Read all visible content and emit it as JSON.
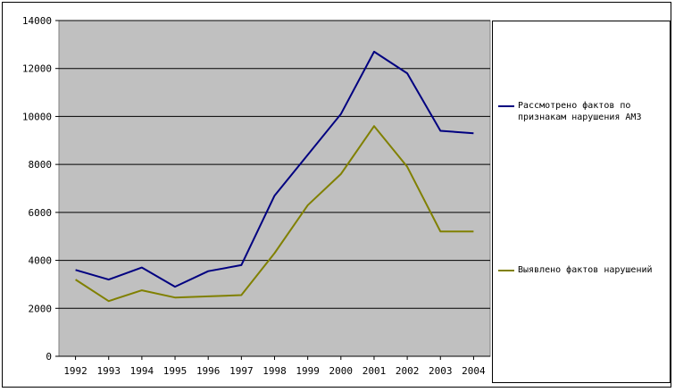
{
  "chart_data": {
    "type": "line",
    "categories": [
      "1992",
      "1993",
      "1994",
      "1995",
      "1996",
      "1997",
      "1998",
      "1999",
      "2000",
      "2001",
      "2002",
      "2003",
      "2004"
    ],
    "series": [
      {
        "name": "Рассмотрено фактов по признакам нарушения АМЗ",
        "color": "#000080",
        "values": [
          3600,
          3200,
          3700,
          2900,
          3550,
          3800,
          6700,
          8400,
          10100,
          12700,
          11800,
          9400,
          9300
        ]
      },
      {
        "name": "Выявлено фактов нарушений",
        "color": "#808000",
        "values": [
          3200,
          2300,
          2750,
          2450,
          2500,
          2550,
          4300,
          6300,
          7600,
          9600,
          7900,
          5200,
          5200
        ]
      }
    ],
    "yticks": [
      "0",
      "2000",
      "4000",
      "6000",
      "8000",
      "10000",
      "12000",
      "14000"
    ],
    "ylim": [
      0,
      14000
    ],
    "grid": true,
    "plot_background": "#c0c0c0",
    "legend_position": "right"
  }
}
